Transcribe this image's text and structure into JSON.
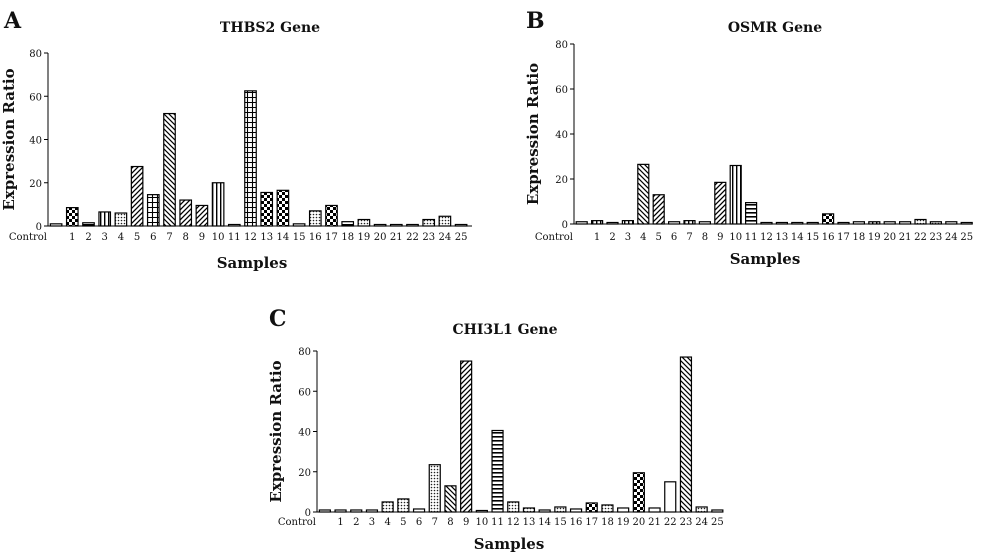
{
  "colors": {
    "bar_stroke": "#000000",
    "background": "#ffffff",
    "text": "#111111"
  },
  "chart_data": [
    {
      "type": "bar",
      "panel": "A",
      "title": "THBS2 Gene",
      "xlabel": "Samples",
      "ylabel": "Expression Ratio",
      "ylim": [
        0,
        80
      ],
      "yticks": [
        0,
        20,
        40,
        60,
        80
      ],
      "grid": false,
      "categories": [
        "Control",
        "1",
        "2",
        "3",
        "4",
        "5",
        "6",
        "7",
        "8",
        "9",
        "10",
        "11",
        "12",
        "13",
        "14",
        "15",
        "16",
        "17",
        "18",
        "19",
        "20",
        "21",
        "22",
        "23",
        "24",
        "25"
      ],
      "values": [
        1,
        8.5,
        1.5,
        6.5,
        6,
        27.5,
        14.5,
        52,
        12,
        9.5,
        20,
        0.5,
        62.5,
        15.5,
        16.5,
        1,
        7,
        9.5,
        2,
        3,
        0.5,
        0.5,
        0.5,
        3,
        4.5,
        0.5
      ],
      "patterns": [
        "plain",
        "check",
        "hlines",
        "vlines",
        "dots",
        "diagleft",
        "grid",
        "diagright",
        "diagleft",
        "diagleft",
        "vlines",
        "plain",
        "grid",
        "check",
        "check",
        "plain",
        "dots",
        "check",
        "hlines",
        "dots",
        "plain",
        "plain",
        "plain",
        "dots",
        "dots",
        "plain"
      ]
    },
    {
      "type": "bar",
      "panel": "B",
      "title": "OSMR Gene",
      "xlabel": "Samples",
      "ylabel": "Expression Ratio",
      "ylim": [
        0,
        80
      ],
      "yticks": [
        0,
        20,
        40,
        60,
        80
      ],
      "grid": false,
      "categories": [
        "Control",
        "1",
        "2",
        "3",
        "4",
        "5",
        "6",
        "7",
        "8",
        "9",
        "10",
        "11",
        "12",
        "13",
        "14",
        "15",
        "16",
        "17",
        "18",
        "19",
        "20",
        "21",
        "22",
        "23",
        "24",
        "25"
      ],
      "values": [
        1,
        1.5,
        0,
        1.5,
        26.5,
        13,
        1,
        1.5,
        1,
        18.5,
        26,
        9.5,
        0.5,
        0,
        0.5,
        0.5,
        4.5,
        0,
        1,
        1,
        1,
        1,
        2,
        1,
        1,
        0
      ],
      "patterns": [
        "plain",
        "vlines",
        "plain",
        "vlines",
        "diagright",
        "diagleft",
        "plain",
        "vlines",
        "hlines",
        "diagleft",
        "vlines",
        "hlines",
        "plain",
        "plain",
        "plain",
        "plain",
        "check",
        "plain",
        "plain",
        "vlines",
        "plain",
        "plain",
        "dots",
        "dots",
        "plain",
        "plain"
      ]
    },
    {
      "type": "bar",
      "panel": "C",
      "title": "CHI3L1 Gene",
      "xlabel": "Samples",
      "ylabel": "Expression Ratio",
      "ylim": [
        0,
        80
      ],
      "yticks": [
        0,
        20,
        40,
        60,
        80
      ],
      "grid": false,
      "categories": [
        "Control",
        "1",
        "2",
        "3",
        "4",
        "5",
        "6",
        "7",
        "8",
        "9",
        "10",
        "11",
        "12",
        "13",
        "14",
        "15",
        "16",
        "17",
        "18",
        "19",
        "20",
        "21",
        "22",
        "23",
        "24",
        "25"
      ],
      "values": [
        1,
        1,
        1,
        1,
        5,
        6.5,
        1.5,
        23.5,
        13,
        75,
        0.5,
        40.5,
        5,
        2,
        1,
        2.5,
        1.5,
        4.5,
        3.5,
        2,
        19.5,
        2,
        15,
        77,
        2.5,
        1
      ],
      "patterns": [
        "plain",
        "plain",
        "plain",
        "plain",
        "dots",
        "dots",
        "plain",
        "dots",
        "diagright",
        "diagleft",
        "plain",
        "hlines",
        "dots",
        "dots",
        "plain",
        "dots",
        "plain",
        "check",
        "dots",
        "plain",
        "check",
        "plain",
        "plain",
        "diagright",
        "dots",
        "plain"
      ]
    }
  ]
}
